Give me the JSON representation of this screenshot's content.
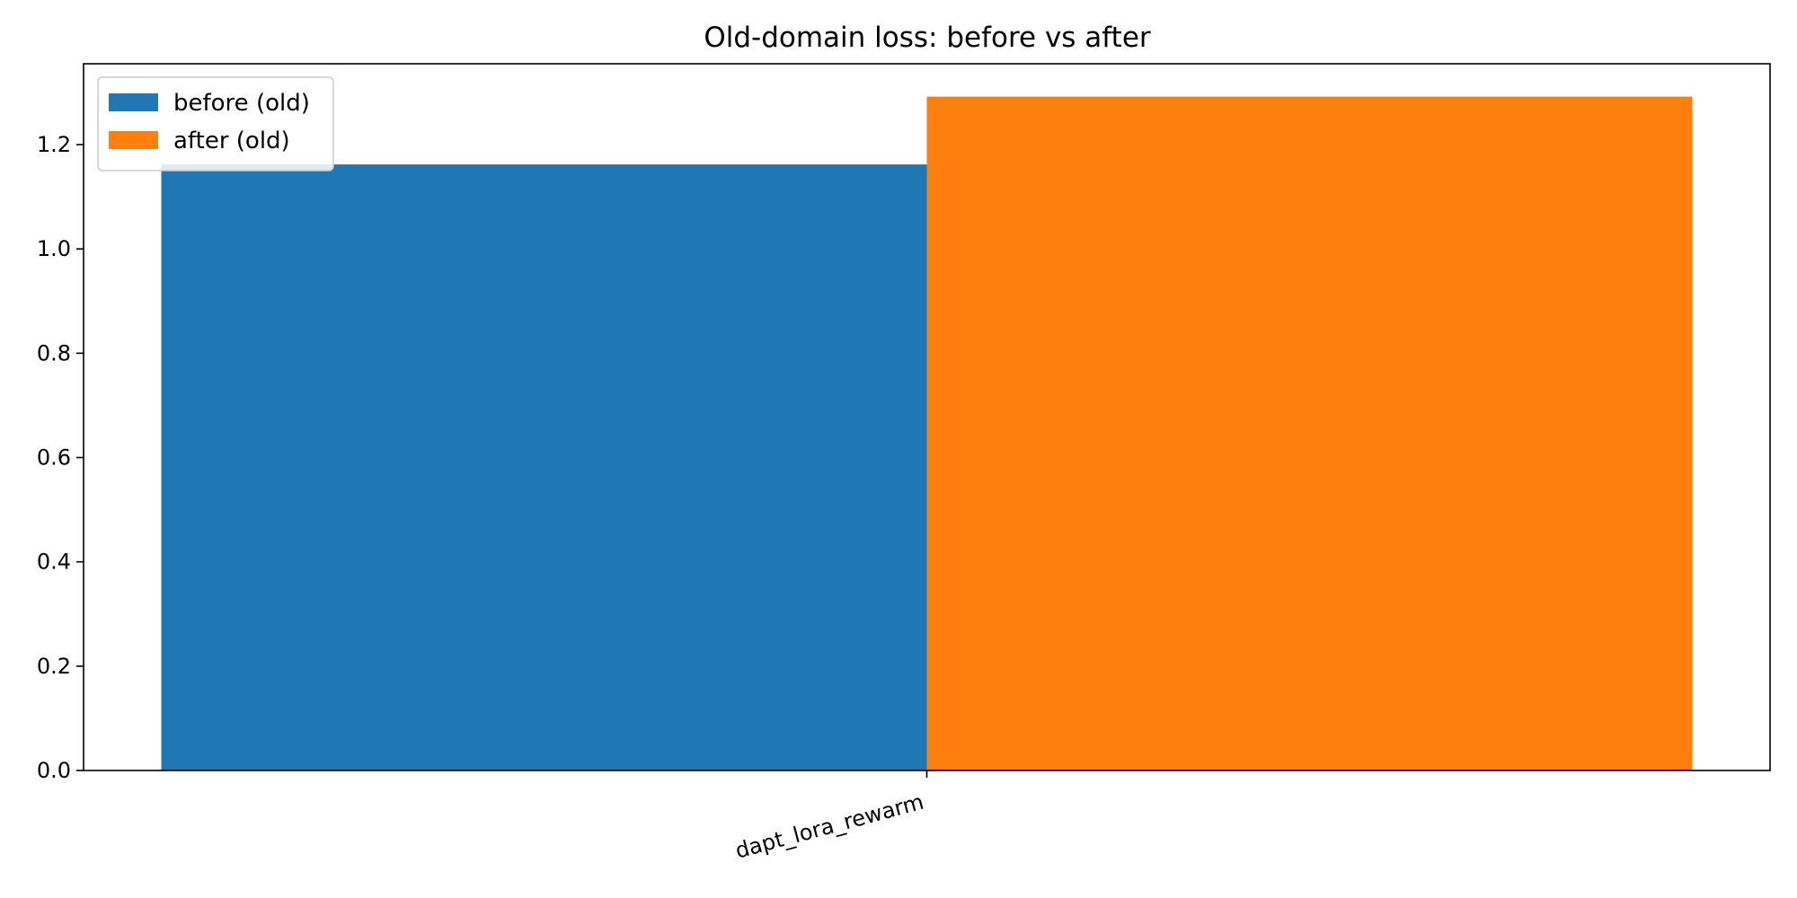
{
  "chart_data": {
    "type": "bar",
    "title": "Old-domain loss: before vs after",
    "xlabel": "",
    "ylabel": "",
    "categories": [
      "dapt_lora_rewarm"
    ],
    "series": [
      {
        "name": "before (old)",
        "values": [
          1.162
        ],
        "color": "#1f77b4"
      },
      {
        "name": "after (old)",
        "values": [
          1.292
        ],
        "color": "#ff7f0e"
      }
    ],
    "ylim": [
      0,
      1.355
    ],
    "yticks": [
      0.0,
      0.2,
      0.4,
      0.6,
      0.8,
      1.0,
      1.2
    ],
    "ytick_labels": [
      "0.0",
      "0.2",
      "0.4",
      "0.6",
      "0.8",
      "1.0",
      "1.2"
    ],
    "legend_position": "top-left",
    "grid": false
  }
}
